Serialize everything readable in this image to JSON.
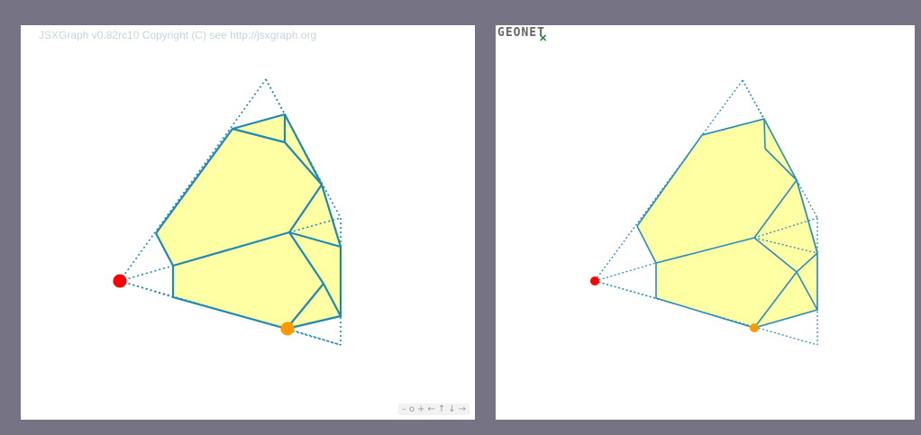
{
  "left_panel": {
    "copyright": "JSXGraph v0.82rc10 Copyright (C) see http://jsxgraph.org",
    "nav_buttons": [
      "–",
      "o",
      "+",
      "←",
      "↑",
      "↓",
      "→"
    ],
    "point_colors": {
      "red": "#ff0000",
      "orange": "#ff9900"
    }
  },
  "right_panel": {
    "logo": "GEONE",
    "logo_tail": "T",
    "point_colors": {
      "red": "#ff0000",
      "orange": "#ff9900"
    }
  },
  "colors": {
    "edge": "#1e88b8",
    "face": "#ffff99",
    "background": "#757384"
  }
}
